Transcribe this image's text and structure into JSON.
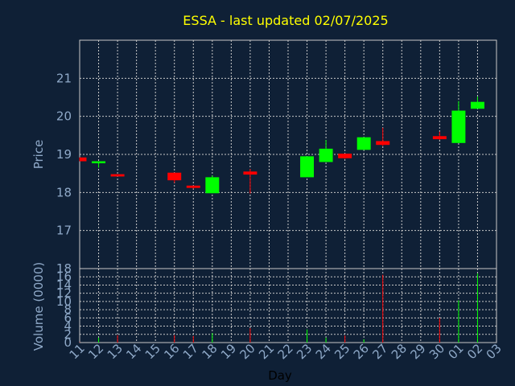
{
  "chart_data": {
    "type": "candlestick",
    "title": "ESSA - last updated 02/07/2025",
    "xlabel": "Day",
    "ylabel": "Price",
    "volume_label": "Volume (0000)",
    "x_ticks": [
      "11",
      "12",
      "13",
      "14",
      "15",
      "16",
      "17",
      "18",
      "19",
      "20",
      "21",
      "22",
      "23",
      "24",
      "25",
      "26",
      "27",
      "28",
      "29",
      "30",
      "01",
      "02",
      "03"
    ],
    "price_ticks": [
      17,
      18,
      19,
      20,
      21
    ],
    "volume_ticks": [
      0,
      2,
      4,
      6,
      8,
      10,
      12,
      14,
      16,
      18
    ],
    "price_range": [
      16.0,
      22.0
    ],
    "volume_range": [
      0,
      18
    ],
    "grid": true,
    "colors": {
      "background": "#0f2036",
      "up": "#00ff00",
      "down": "#ff0000",
      "title": "#ffff00",
      "axis_text": "#8fa9c8",
      "grid": "#c8c8c8",
      "frame": "#c8c8c8"
    },
    "candles": [
      {
        "day": "11",
        "open": 18.92,
        "high": 18.92,
        "low": 18.82,
        "close": 18.82
      },
      {
        "day": "12",
        "open": 18.78,
        "high": 18.82,
        "low": 18.65,
        "close": 18.82
      },
      {
        "day": "13",
        "open": 18.48,
        "high": 18.48,
        "low": 18.42,
        "close": 18.42
      },
      {
        "day": "16",
        "open": 18.52,
        "high": 18.52,
        "low": 18.25,
        "close": 18.32
      },
      {
        "day": "17",
        "open": 18.18,
        "high": 18.18,
        "low": 18.1,
        "close": 18.12
      },
      {
        "day": "18",
        "open": 17.98,
        "high": 18.45,
        "low": 17.98,
        "close": 18.4
      },
      {
        "day": "20",
        "open": 18.55,
        "high": 18.62,
        "low": 17.97,
        "close": 18.47
      },
      {
        "day": "23",
        "open": 18.4,
        "high": 18.95,
        "low": 18.4,
        "close": 18.95
      },
      {
        "day": "24",
        "open": 18.8,
        "high": 19.38,
        "low": 18.8,
        "close": 19.15
      },
      {
        "day": "25",
        "open": 19.02,
        "high": 19.02,
        "low": 18.88,
        "close": 18.9
      },
      {
        "day": "26",
        "open": 19.12,
        "high": 19.45,
        "low": 19.12,
        "close": 19.45
      },
      {
        "day": "27",
        "open": 19.35,
        "high": 19.7,
        "low": 19.22,
        "close": 19.25
      },
      {
        "day": "30",
        "open": 19.48,
        "high": 19.6,
        "low": 19.38,
        "close": 19.4
      },
      {
        "day": "01",
        "open": 19.3,
        "high": 20.4,
        "low": 19.3,
        "close": 20.15
      },
      {
        "day": "02",
        "open": 20.2,
        "high": 20.52,
        "low": 20.2,
        "close": 20.38
      }
    ],
    "volume": [
      {
        "day": "11",
        "value": 0.1,
        "dir": "down"
      },
      {
        "day": "12",
        "value": 1.2,
        "dir": "up"
      },
      {
        "day": "13",
        "value": 1.8,
        "dir": "down"
      },
      {
        "day": "16",
        "value": 1.8,
        "dir": "down"
      },
      {
        "day": "17",
        "value": 1.6,
        "dir": "down"
      },
      {
        "day": "18",
        "value": 2.3,
        "dir": "up"
      },
      {
        "day": "20",
        "value": 3.5,
        "dir": "down"
      },
      {
        "day": "23",
        "value": 3.2,
        "dir": "up"
      },
      {
        "day": "24",
        "value": 1.2,
        "dir": "up"
      },
      {
        "day": "25",
        "value": 1.7,
        "dir": "down"
      },
      {
        "day": "26",
        "value": 0.8,
        "dir": "up"
      },
      {
        "day": "27",
        "value": 16.5,
        "dir": "down"
      },
      {
        "day": "30",
        "value": 6.0,
        "dir": "down"
      },
      {
        "day": "01",
        "value": 10.3,
        "dir": "up"
      },
      {
        "day": "02",
        "value": 16.8,
        "dir": "up"
      }
    ]
  }
}
